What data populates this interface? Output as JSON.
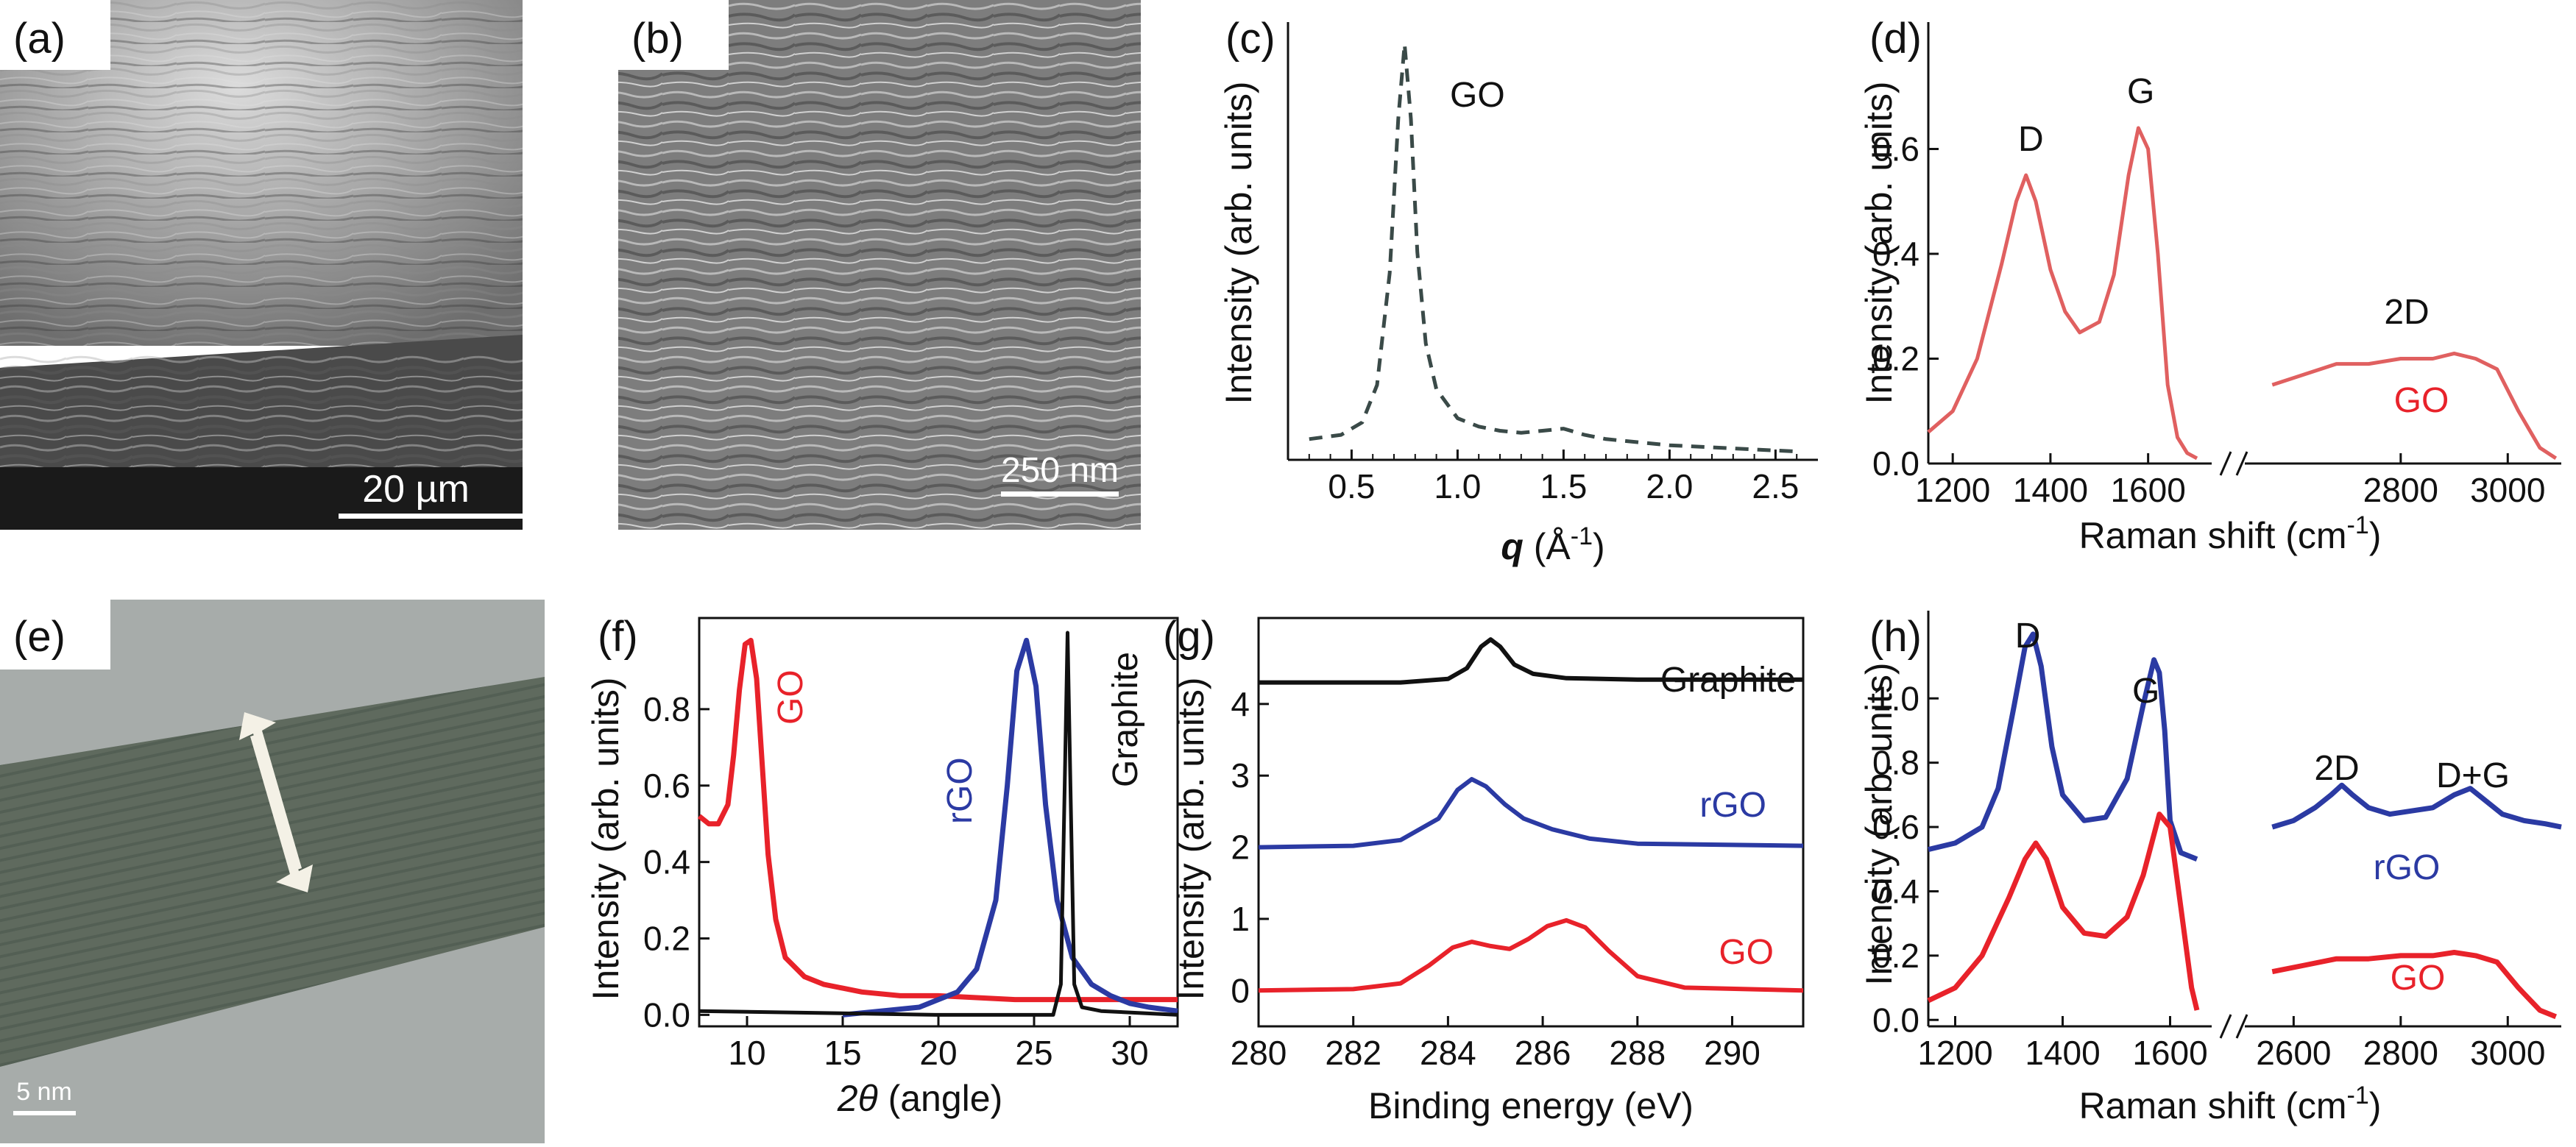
{
  "panels": {
    "a": {
      "letter": "(a)",
      "scale_bar": "20 µm"
    },
    "b": {
      "letter": "(b)",
      "scale_bar": "250 nm"
    },
    "c": {
      "letter": "(c)"
    },
    "d": {
      "letter": "(d)"
    },
    "e": {
      "letter": "(e)",
      "scale_bar": "5 nm"
    },
    "f": {
      "letter": "(f)"
    },
    "g": {
      "letter": "(g)"
    },
    "h": {
      "letter": "(h)"
    }
  },
  "colors": {
    "red": "#e8222a",
    "blue": "#2b3aa3",
    "black": "#111111",
    "dashed": "#3a4a48",
    "raman_red": "#e06060"
  },
  "chart_data": [
    {
      "id": "c",
      "type": "line",
      "title": "",
      "xlabel_q": "q",
      "xlabel_unit": "(Å",
      "xlabel_exp": "-1",
      "xlabel_close": ")",
      "ylabel": "Intensity (arb. units)",
      "xlim": [
        0.2,
        2.7
      ],
      "ylim": [
        0,
        1.0
      ],
      "x_ticks": [
        "0.5",
        "1.0",
        "1.5",
        "2.0",
        "2.5"
      ],
      "annotations": [
        "GO"
      ],
      "series": [
        {
          "name": "GO",
          "style": "dashed",
          "x": [
            0.3,
            0.45,
            0.55,
            0.62,
            0.68,
            0.72,
            0.75,
            0.78,
            0.81,
            0.85,
            0.9,
            1.0,
            1.1,
            1.2,
            1.3,
            1.4,
            1.5,
            1.6,
            1.7,
            1.8,
            2.0,
            2.2,
            2.4,
            2.6
          ],
          "y": [
            0.05,
            0.06,
            0.09,
            0.18,
            0.45,
            0.82,
            1.0,
            0.82,
            0.5,
            0.28,
            0.17,
            0.1,
            0.08,
            0.07,
            0.065,
            0.07,
            0.075,
            0.06,
            0.05,
            0.045,
            0.035,
            0.03,
            0.025,
            0.02
          ]
        }
      ]
    },
    {
      "id": "d",
      "type": "line",
      "broken_axis": true,
      "xlabel": "Raman shift (cm",
      "xlabel_exp": "-1",
      "xlabel_close": ")",
      "ylabel": "Intensity (arb. units)",
      "ylim": [
        0,
        0.8
      ],
      "y_ticks": [
        "0.0",
        "0.2",
        "0.4",
        "0.6"
      ],
      "left_xlim": [
        1150,
        1700
      ],
      "left_x_ticks": [
        "1200",
        "1400",
        "1600"
      ],
      "right_xlim": [
        2550,
        3100
      ],
      "right_x_ticks": [
        "2800",
        "3000"
      ],
      "annotations": {
        "D": "D",
        "G": "G",
        "2D": "2D",
        "label": "GO"
      },
      "series": [
        {
          "name": "GO",
          "left_x": [
            1150,
            1200,
            1250,
            1300,
            1330,
            1350,
            1370,
            1400,
            1430,
            1460,
            1500,
            1530,
            1560,
            1580,
            1600,
            1620,
            1640,
            1660,
            1680,
            1700
          ],
          "left_y": [
            0.06,
            0.1,
            0.2,
            0.38,
            0.5,
            0.55,
            0.5,
            0.37,
            0.29,
            0.25,
            0.27,
            0.36,
            0.55,
            0.64,
            0.6,
            0.4,
            0.15,
            0.05,
            0.02,
            0.01
          ],
          "right_x": [
            2560,
            2620,
            2680,
            2740,
            2800,
            2860,
            2900,
            2940,
            2980,
            3020,
            3060,
            3090
          ],
          "right_y": [
            0.15,
            0.17,
            0.19,
            0.19,
            0.2,
            0.2,
            0.21,
            0.2,
            0.18,
            0.1,
            0.03,
            0.01
          ]
        }
      ]
    },
    {
      "id": "f",
      "type": "line",
      "xlabel_theta": "2θ",
      "xlabel_rest": " (angle)",
      "ylabel": "Intensity (arb. units)",
      "xlim": [
        7.5,
        32.5
      ],
      "ylim": [
        -0.03,
        1.0
      ],
      "x_ticks": [
        "10",
        "15",
        "20",
        "25",
        "30"
      ],
      "y_ticks": [
        "0.0",
        "0.2",
        "0.4",
        "0.6",
        "0.8"
      ],
      "series": [
        {
          "name": "GO",
          "color": "red",
          "x": [
            7.5,
            8,
            8.5,
            9,
            9.3,
            9.6,
            9.9,
            10.2,
            10.5,
            10.8,
            11.1,
            11.5,
            12,
            13,
            14,
            16,
            18,
            20,
            24,
            28,
            32.5
          ],
          "y": [
            0.52,
            0.5,
            0.5,
            0.55,
            0.68,
            0.85,
            0.97,
            0.98,
            0.88,
            0.65,
            0.42,
            0.25,
            0.15,
            0.1,
            0.08,
            0.06,
            0.05,
            0.05,
            0.04,
            0.04,
            0.04
          ]
        },
        {
          "name": "rGO",
          "color": "blue",
          "x": [
            15,
            17,
            19,
            20,
            21,
            22,
            23,
            23.6,
            24.1,
            24.6,
            25.1,
            25.6,
            26.2,
            27,
            28,
            29,
            30,
            31,
            32.5
          ],
          "y": [
            0,
            0.01,
            0.02,
            0.04,
            0.06,
            0.12,
            0.3,
            0.6,
            0.9,
            0.98,
            0.86,
            0.55,
            0.3,
            0.15,
            0.08,
            0.05,
            0.03,
            0.02,
            0.01
          ]
        },
        {
          "name": "Graphite",
          "color": "black",
          "x": [
            7.5,
            20,
            26,
            26.4,
            26.6,
            26.75,
            26.9,
            27.1,
            27.5,
            28.5,
            32.5
          ],
          "y": [
            0.01,
            0.0,
            0.0,
            0.08,
            0.6,
            1.0,
            0.6,
            0.08,
            0.02,
            0.01,
            0.0
          ]
        }
      ]
    },
    {
      "id": "g",
      "type": "line",
      "xlabel": "Binding energy (eV)",
      "ylabel": "Intensity (arb. units)",
      "xlim": [
        280,
        291.5
      ],
      "ylim": [
        -0.5,
        5.2
      ],
      "x_ticks": [
        "280",
        "282",
        "284",
        "286",
        "288",
        "290"
      ],
      "y_ticks": [
        "0",
        "1",
        "2",
        "3",
        "4"
      ],
      "series": [
        {
          "name": "Graphite",
          "color": "black",
          "x": [
            280,
            283,
            284,
            284.4,
            284.7,
            284.9,
            285.1,
            285.4,
            285.8,
            286.5,
            288,
            291.5
          ],
          "y": [
            4.3,
            4.3,
            4.35,
            4.5,
            4.8,
            4.9,
            4.8,
            4.55,
            4.42,
            4.36,
            4.34,
            4.34
          ]
        },
        {
          "name": "rGO",
          "color": "blue",
          "x": [
            280,
            282,
            283,
            283.8,
            284.2,
            284.5,
            284.8,
            285.2,
            285.6,
            286.2,
            287,
            288,
            291.5
          ],
          "y": [
            2.0,
            2.02,
            2.1,
            2.4,
            2.8,
            2.95,
            2.85,
            2.6,
            2.4,
            2.25,
            2.12,
            2.05,
            2.02
          ]
        },
        {
          "name": "GO",
          "color": "red",
          "x": [
            280,
            282,
            283,
            283.6,
            284.1,
            284.5,
            284.9,
            285.3,
            285.7,
            286.1,
            286.5,
            286.9,
            287.4,
            288,
            289,
            291.5
          ],
          "y": [
            0,
            0.02,
            0.1,
            0.35,
            0.6,
            0.68,
            0.62,
            0.58,
            0.72,
            0.9,
            0.98,
            0.88,
            0.55,
            0.2,
            0.04,
            0.0
          ]
        }
      ]
    },
    {
      "id": "h",
      "type": "line",
      "broken_axis": true,
      "xlabel": "Raman shift (cm",
      "xlabel_exp": "-1",
      "xlabel_close": ")",
      "ylabel": "Intensity (arb. units)",
      "ylim": [
        -0.02,
        1.25
      ],
      "y_ticks": [
        "0.0",
        "0.2",
        "0.4",
        "0.6",
        "0.8",
        "1.0"
      ],
      "left_xlim": [
        1150,
        1650
      ],
      "left_x_ticks": [
        "1200",
        "1400",
        "1600"
      ],
      "right_xlim": [
        2550,
        3100
      ],
      "right_x_ticks": [
        "2600",
        "2800",
        "3000"
      ],
      "annotations": {
        "D": "D",
        "G": "G",
        "2D": "2D",
        "DG": "D+G",
        "rgo_label": "rGO",
        "go_label": "GO"
      },
      "series": [
        {
          "name": "rGO",
          "color": "blue",
          "left_x": [
            1150,
            1200,
            1250,
            1280,
            1310,
            1330,
            1345,
            1360,
            1380,
            1400,
            1440,
            1480,
            1520,
            1550,
            1570,
            1580,
            1590,
            1600,
            1620,
            1650
          ],
          "left_y": [
            0.53,
            0.55,
            0.6,
            0.72,
            0.98,
            1.16,
            1.2,
            1.1,
            0.85,
            0.7,
            0.62,
            0.63,
            0.75,
            0.98,
            1.12,
            1.08,
            0.9,
            0.62,
            0.52,
            0.5
          ],
          "right_x": [
            2560,
            2600,
            2640,
            2670,
            2690,
            2710,
            2740,
            2780,
            2820,
            2860,
            2900,
            2930,
            2960,
            2990,
            3030,
            3070,
            3100
          ],
          "right_y": [
            0.6,
            0.62,
            0.66,
            0.7,
            0.73,
            0.7,
            0.66,
            0.64,
            0.65,
            0.66,
            0.7,
            0.72,
            0.68,
            0.64,
            0.62,
            0.61,
            0.6
          ]
        },
        {
          "name": "GO",
          "color": "red",
          "left_x": [
            1150,
            1200,
            1250,
            1300,
            1330,
            1350,
            1370,
            1400,
            1440,
            1480,
            1520,
            1550,
            1580,
            1600,
            1620,
            1640,
            1650
          ],
          "left_y": [
            0.06,
            0.1,
            0.2,
            0.38,
            0.5,
            0.55,
            0.5,
            0.35,
            0.27,
            0.26,
            0.32,
            0.45,
            0.64,
            0.6,
            0.35,
            0.1,
            0.03
          ],
          "right_x": [
            2560,
            2620,
            2680,
            2740,
            2800,
            2860,
            2900,
            2940,
            2980,
            3020,
            3060,
            3090
          ],
          "right_y": [
            0.15,
            0.17,
            0.19,
            0.19,
            0.2,
            0.2,
            0.21,
            0.2,
            0.18,
            0.1,
            0.03,
            0.01
          ]
        }
      ]
    }
  ]
}
